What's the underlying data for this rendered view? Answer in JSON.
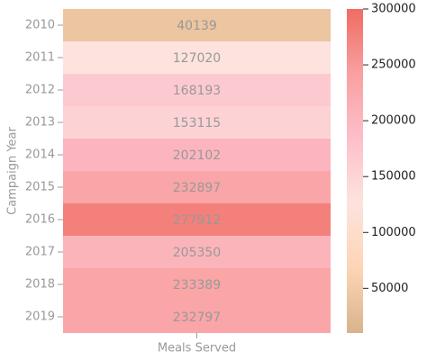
{
  "chart_data": {
    "type": "heatmap",
    "ylabel": "Campaign Year",
    "x_categories": [
      "Meals Served"
    ],
    "categories": [
      "2010",
      "2011",
      "2012",
      "2013",
      "2014",
      "2015",
      "2016",
      "2017",
      "2018",
      "2019"
    ],
    "values": [
      40139,
      127020,
      168193,
      153115,
      202102,
      232897,
      277912,
      205350,
      233389,
      232797
    ],
    "colormap": [
      "#d9b38c",
      "#fdd5b5",
      "#fde3dd",
      "#fdbfcb",
      "#f9a0a0",
      "#ef6c63"
    ],
    "clim": [
      10000,
      300000
    ],
    "cticks": [
      50000,
      100000,
      150000,
      200000,
      250000,
      300000
    ]
  }
}
